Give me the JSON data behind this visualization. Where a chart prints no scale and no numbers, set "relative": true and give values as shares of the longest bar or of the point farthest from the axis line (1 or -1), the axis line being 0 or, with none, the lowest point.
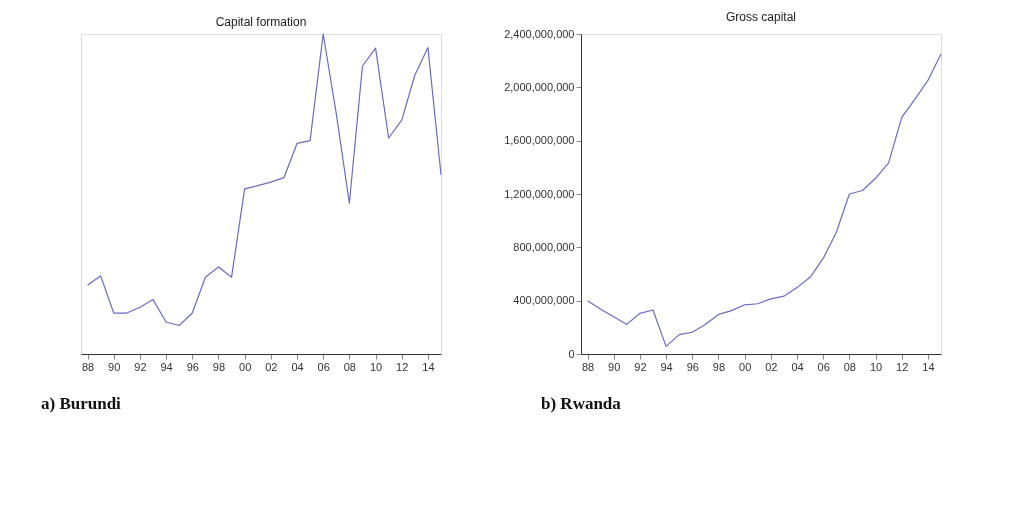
{
  "chart_data": [
    {
      "type": "line",
      "title": "Capital formation",
      "relative": true,
      "annotations": [
        "a)  Burundi"
      ],
      "grid": false,
      "x": [
        1988,
        1989,
        1990,
        1991,
        1992,
        1993,
        1994,
        1995,
        1996,
        1997,
        1998,
        1999,
        2000,
        2001,
        2002,
        2003,
        2004,
        2005,
        2006,
        2007,
        2008,
        2009,
        2010,
        2011,
        2012,
        2013,
        2014,
        2015
      ],
      "xlim": [
        1987.5,
        2015
      ],
      "xticks": [
        {
          "value": 1988,
          "label": "88"
        },
        {
          "value": 1990,
          "label": "90"
        },
        {
          "value": 1992,
          "label": "92"
        },
        {
          "value": 1994,
          "label": "94"
        },
        {
          "value": 1996,
          "label": "96"
        },
        {
          "value": 1998,
          "label": "98"
        },
        {
          "value": 2000,
          "label": "00"
        },
        {
          "value": 2002,
          "label": "02"
        },
        {
          "value": 2004,
          "label": "04"
        },
        {
          "value": 2006,
          "label": "06"
        },
        {
          "value": 2008,
          "label": "08"
        },
        {
          "value": 2010,
          "label": "10"
        },
        {
          "value": 2012,
          "label": "12"
        },
        {
          "value": 2014,
          "label": "14"
        }
      ],
      "series": [
        {
          "color": "#6b6bc4",
          "values": [
            0.216,
            0.244,
            0.128,
            0.128,
            0.146,
            0.17,
            0.1,
            0.089,
            0.128,
            0.24,
            0.272,
            0.24,
            0.516,
            0.526,
            0.537,
            0.551,
            0.658,
            0.667,
            1,
            0.751,
            0.471,
            0.9,
            0.956,
            0.675,
            0.731,
            0.871,
            0.958,
            0.56
          ]
        }
      ]
    },
    {
      "type": "line",
      "title": "Gross capital",
      "annotations": [
        "b) Rwanda"
      ],
      "grid": false,
      "x": [
        1988,
        1989,
        1990,
        1991,
        1992,
        1993,
        1994,
        1995,
        1996,
        1997,
        1998,
        1999,
        2000,
        2001,
        2002,
        2003,
        2004,
        2005,
        2006,
        2007,
        2008,
        2009,
        2010,
        2011,
        2012,
        2013,
        2014,
        2015
      ],
      "xlim": [
        1987.5,
        2015
      ],
      "xticks": [
        {
          "value": 1988,
          "label": "88"
        },
        {
          "value": 1990,
          "label": "90"
        },
        {
          "value": 1992,
          "label": "92"
        },
        {
          "value": 1994,
          "label": "94"
        },
        {
          "value": 1996,
          "label": "96"
        },
        {
          "value": 1998,
          "label": "98"
        },
        {
          "value": 2000,
          "label": "00"
        },
        {
          "value": 2002,
          "label": "02"
        },
        {
          "value": 2004,
          "label": "04"
        },
        {
          "value": 2006,
          "label": "06"
        },
        {
          "value": 2008,
          "label": "08"
        },
        {
          "value": 2010,
          "label": "10"
        },
        {
          "value": 2012,
          "label": "12"
        },
        {
          "value": 2014,
          "label": "14"
        }
      ],
      "ylim": [
        0,
        2400000000
      ],
      "yticks": [
        {
          "value": 0,
          "label": "0"
        },
        {
          "value": 400000000,
          "label": "400,000,000"
        },
        {
          "value": 800000000,
          "label": "800,000,000"
        },
        {
          "value": 1200000000,
          "label": "1,200,000,000"
        },
        {
          "value": 1600000000,
          "label": "1,600,000,000"
        },
        {
          "value": 2000000000,
          "label": "2,000,000,000"
        },
        {
          "value": 2400000000,
          "label": "2,400,000,000"
        }
      ],
      "series": [
        {
          "color": "#6b6bc4",
          "values": [
            400000000,
            335000000,
            279000000,
            222000000,
            305000000,
            330000000,
            57000000,
            145000000,
            163000000,
            222000000,
            297000000,
            325000000,
            369000000,
            377000000,
            413000000,
            434000000,
            498000000,
            575000000,
            717000000,
            911000000,
            1200000000,
            1226000000,
            1318000000,
            1434000000,
            1775000000,
            1910000000,
            2052000000,
            2250000000
          ]
        }
      ]
    }
  ]
}
